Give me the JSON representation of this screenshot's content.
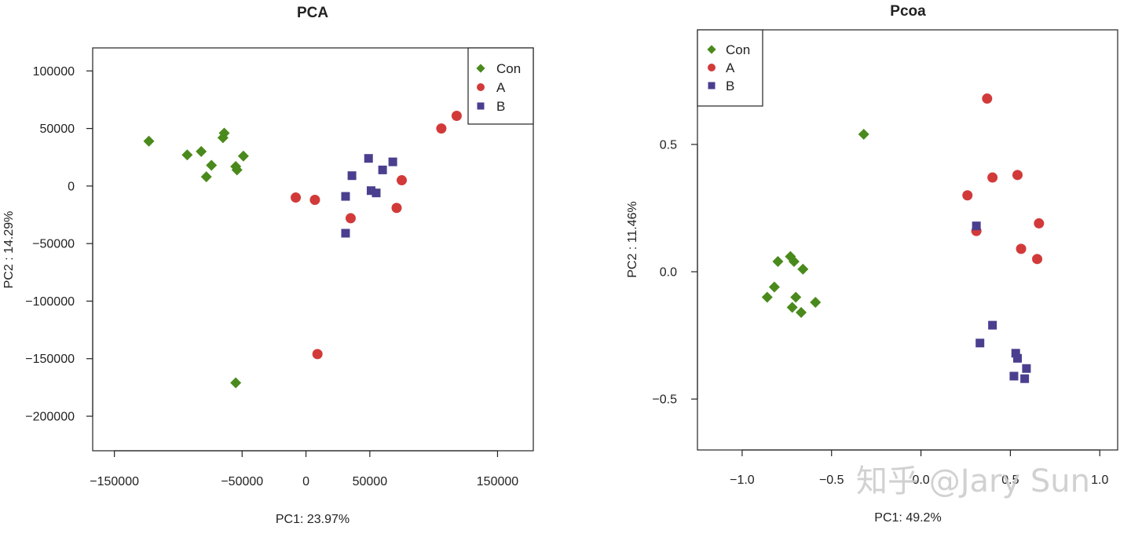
{
  "watermark": "知乎 @Jary Sun",
  "colors": {
    "Con": "#4a8a1c",
    "A": "#d23a3a",
    "B": "#4a3f8e"
  },
  "chart_data": [
    {
      "type": "scatter",
      "title": "PCA",
      "xlabel": "PC1: 23.97%",
      "ylabel": "PC2 :  14.29%",
      "xlim": [
        -167000,
        178000
      ],
      "ylim": [
        -230000,
        120000
      ],
      "xticks": [
        -150000,
        -50000,
        0,
        50000,
        150000
      ],
      "xtick_labels": [
        "−150000",
        "−50000",
        "0",
        "50000",
        "150000"
      ],
      "yticks": [
        100000,
        50000,
        0,
        -50000,
        -100000,
        -150000,
        -200000
      ],
      "ytick_labels": [
        "100000",
        "50000",
        "0",
        "−50000",
        "−100000",
        "−150000",
        "−200000"
      ],
      "legend": {
        "position": "top-right",
        "entries": [
          "Con",
          "A",
          "B"
        ]
      },
      "series": [
        {
          "name": "Con",
          "marker": "diamond",
          "points": [
            [
              -123000,
              39000
            ],
            [
              -93000,
              27000
            ],
            [
              -82000,
              30000
            ],
            [
              -74000,
              18000
            ],
            [
              -78000,
              8000
            ],
            [
              -65000,
              42000
            ],
            [
              -64000,
              46000
            ],
            [
              -55000,
              17000
            ],
            [
              -54000,
              14000
            ],
            [
              -49000,
              26000
            ],
            [
              -55000,
              -171000
            ]
          ]
        },
        {
          "name": "A",
          "marker": "circle",
          "points": [
            [
              -8000,
              -10000
            ],
            [
              7000,
              -12000
            ],
            [
              35000,
              -28000
            ],
            [
              75000,
              5000
            ],
            [
              71000,
              -19000
            ],
            [
              106000,
              50000
            ],
            [
              118000,
              61000
            ],
            [
              9000,
              -146000
            ]
          ]
        },
        {
          "name": "B",
          "marker": "square",
          "points": [
            [
              31000,
              -9000
            ],
            [
              36000,
              9000
            ],
            [
              49000,
              24000
            ],
            [
              51000,
              -4000
            ],
            [
              55000,
              -6000
            ],
            [
              60000,
              14000
            ],
            [
              68000,
              21000
            ],
            [
              31000,
              -41000
            ]
          ]
        }
      ]
    },
    {
      "type": "scatter",
      "title": "Pcoa",
      "xlabel": "PC1: 49.2%",
      "ylabel": "PC2 :  11.46%",
      "xlim": [
        -1.25,
        1.1
      ],
      "ylim": [
        -0.7,
        0.95
      ],
      "xticks": [
        -1.0,
        -0.5,
        0.0,
        0.5,
        1.0
      ],
      "xtick_labels": [
        "−1.0",
        "−0.5",
        "0.0",
        "0.5",
        "1.0"
      ],
      "yticks": [
        0.5,
        0.0,
        -0.5
      ],
      "ytick_labels": [
        "0.5",
        "0.0",
        "−0.5"
      ],
      "legend": {
        "position": "top-left",
        "entries": [
          "Con",
          "A",
          "B"
        ]
      },
      "series": [
        {
          "name": "Con",
          "marker": "diamond",
          "points": [
            [
              -0.32,
              0.54
            ],
            [
              -0.8,
              0.04
            ],
            [
              -0.73,
              0.06
            ],
            [
              -0.71,
              0.04
            ],
            [
              -0.66,
              0.01
            ],
            [
              -0.82,
              -0.06
            ],
            [
              -0.86,
              -0.1
            ],
            [
              -0.7,
              -0.1
            ],
            [
              -0.72,
              -0.14
            ],
            [
              -0.67,
              -0.16
            ],
            [
              -0.59,
              -0.12
            ]
          ]
        },
        {
          "name": "A",
          "marker": "circle",
          "points": [
            [
              0.37,
              0.68
            ],
            [
              0.26,
              0.3
            ],
            [
              0.4,
              0.37
            ],
            [
              0.54,
              0.38
            ],
            [
              0.66,
              0.19
            ],
            [
              0.31,
              0.16
            ],
            [
              0.56,
              0.09
            ],
            [
              0.65,
              0.05
            ]
          ]
        },
        {
          "name": "B",
          "marker": "square",
          "points": [
            [
              0.31,
              0.18
            ],
            [
              0.4,
              -0.21
            ],
            [
              0.33,
              -0.28
            ],
            [
              0.53,
              -0.32
            ],
            [
              0.54,
              -0.34
            ],
            [
              0.59,
              -0.38
            ],
            [
              0.52,
              -0.41
            ],
            [
              0.58,
              -0.42
            ]
          ]
        }
      ]
    }
  ]
}
